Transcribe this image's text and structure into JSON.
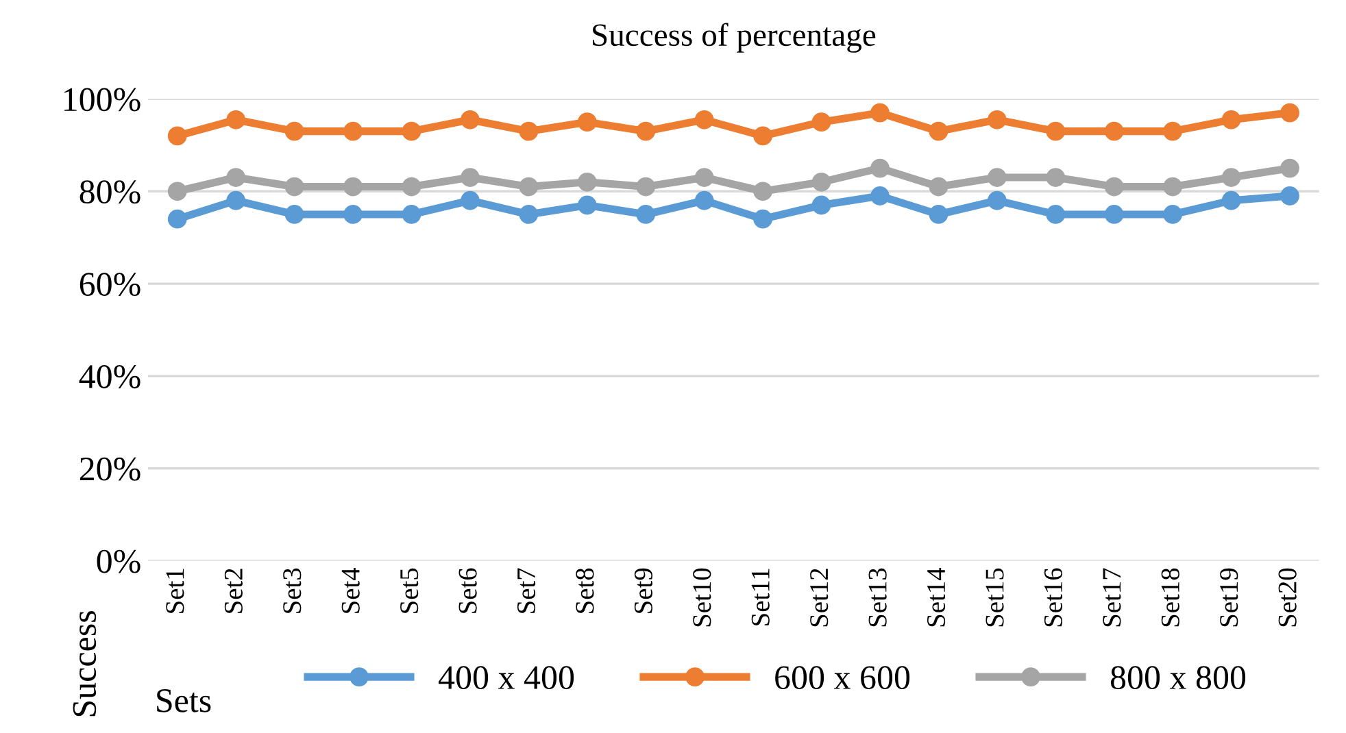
{
  "chart_data": {
    "type": "line",
    "title": "Success of percentage",
    "xlabel": "Sets",
    "ylabel": "Success",
    "categories": [
      "Set1",
      "Set2",
      "Set3",
      "Set4",
      "Set5",
      "Set6",
      "Set7",
      "Set8",
      "Set9",
      "Set10",
      "Set11",
      "Set12",
      "Set13",
      "Set14",
      "Set15",
      "Set16",
      "Set17",
      "Set18",
      "Set19",
      "Set20"
    ],
    "series": [
      {
        "name": "400 x 400",
        "color": "#5b9bd5",
        "values": [
          74,
          78,
          75,
          75,
          75,
          78,
          75,
          77,
          75,
          78,
          74,
          77,
          79,
          75,
          78,
          75,
          75,
          75,
          78,
          79
        ]
      },
      {
        "name": "600 x 600",
        "color": "#ed7d31",
        "values": [
          92,
          95.5,
          93,
          93,
          93,
          95.5,
          93,
          95,
          93,
          95.5,
          92,
          95,
          97,
          93,
          95.5,
          93,
          93,
          93,
          95.5,
          97
        ]
      },
      {
        "name": "800 x 800",
        "color": "#a5a5a5",
        "values": [
          80,
          83,
          81,
          81,
          81,
          83,
          81,
          82,
          81,
          83,
          80,
          82,
          85,
          81,
          83,
          83,
          81,
          81,
          83,
          85
        ]
      }
    ],
    "ylim": [
      0,
      100
    ],
    "yticks": [
      {
        "value": 0,
        "label": "0%"
      },
      {
        "value": 20,
        "label": "20%"
      },
      {
        "value": 40,
        "label": "40%"
      },
      {
        "value": 60,
        "label": "60%"
      },
      {
        "value": 80,
        "label": "80%"
      },
      {
        "value": 100,
        "label": "100%"
      }
    ],
    "grid": "y",
    "legend": "bottom",
    "marker": "circle",
    "line_style": "solid"
  }
}
